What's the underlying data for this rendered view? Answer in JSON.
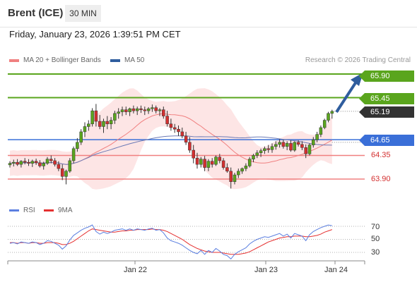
{
  "header": {
    "title": "Brent (ICE)",
    "timeframe": "30 MIN"
  },
  "datetime": "Friday, January 23, 2026 1:39:51 PM CET",
  "legend": {
    "ma20": "MA 20 + Bollinger Bands",
    "ma50": "MA 50",
    "rsi": "RSI",
    "ma9": "9MA"
  },
  "credit": "Research © 2026 Trading Central",
  "colors": {
    "resistance": "#5aa51d",
    "support": "#f08080",
    "pivot": "#3a6fd8",
    "current": "#333333",
    "arrow": "#2f5d9e",
    "candle_up": "#5aa51d",
    "candle_down": "#d32f2f",
    "bb_fill": "#fcdcdc",
    "ma20": "#f08080",
    "ma50": "#6b7ab6",
    "rsi": "#5b7fe0",
    "ma9": "#e53030"
  },
  "chart_data": [
    {
      "type": "candlestick",
      "ylim": [
        63.68,
        66.06
      ],
      "x_ticks": [
        "Jan 22",
        "Jan 23",
        "Jan 24"
      ],
      "levels": {
        "resistance": [
          "65.90",
          "65.45"
        ],
        "current": "65.19",
        "pivot": "64.65",
        "support": [
          "64.35",
          "63.90"
        ]
      },
      "ohlc": [
        [
          64.17,
          64.24,
          64.12,
          64.2
        ],
        [
          64.2,
          64.27,
          64.14,
          64.22
        ],
        [
          64.22,
          64.28,
          64.15,
          64.18
        ],
        [
          64.18,
          64.26,
          64.12,
          64.24
        ],
        [
          64.24,
          64.3,
          64.18,
          64.22
        ],
        [
          64.22,
          64.28,
          64.15,
          64.2
        ],
        [
          64.2,
          64.27,
          64.13,
          64.24
        ],
        [
          64.24,
          64.29,
          64.17,
          64.21
        ],
        [
          64.21,
          64.26,
          64.12,
          64.15
        ],
        [
          64.15,
          64.23,
          64.08,
          64.2
        ],
        [
          64.2,
          64.32,
          64.17,
          64.28
        ],
        [
          64.28,
          64.35,
          64.2,
          64.25
        ],
        [
          64.25,
          64.3,
          64.14,
          64.18
        ],
        [
          64.18,
          64.24,
          64.05,
          64.1
        ],
        [
          64.1,
          64.18,
          63.88,
          63.95
        ],
        [
          63.95,
          64.08,
          63.8,
          64.05
        ],
        [
          64.05,
          64.3,
          64.02,
          64.25
        ],
        [
          64.25,
          64.52,
          64.2,
          64.48
        ],
        [
          64.48,
          64.68,
          64.42,
          64.6
        ],
        [
          64.6,
          64.85,
          64.55,
          64.8
        ],
        [
          64.8,
          64.98,
          64.7,
          64.9
        ],
        [
          64.9,
          65.02,
          64.82,
          64.95
        ],
        [
          64.95,
          65.25,
          64.9,
          65.2
        ],
        [
          65.2,
          65.33,
          64.9,
          65.0
        ],
        [
          65.0,
          65.12,
          64.85,
          64.9
        ],
        [
          64.9,
          65.05,
          64.78,
          65.0
        ],
        [
          65.0,
          65.1,
          64.85,
          64.95
        ],
        [
          64.95,
          65.08,
          64.85,
          65.02
        ],
        [
          65.02,
          65.2,
          64.95,
          65.15
        ],
        [
          65.15,
          65.25,
          65.05,
          65.18
        ],
        [
          65.18,
          65.28,
          65.1,
          65.22
        ],
        [
          65.22,
          65.28,
          65.12,
          65.18
        ],
        [
          65.18,
          65.26,
          65.1,
          65.24
        ],
        [
          65.24,
          65.3,
          65.15,
          65.2
        ],
        [
          65.2,
          65.28,
          65.12,
          65.24
        ],
        [
          65.24,
          65.3,
          65.16,
          65.22
        ],
        [
          65.22,
          65.28,
          65.12,
          65.2
        ],
        [
          65.2,
          65.27,
          65.14,
          65.24
        ],
        [
          65.24,
          65.32,
          65.18,
          65.26
        ],
        [
          65.26,
          65.3,
          65.15,
          65.2
        ],
        [
          65.2,
          65.25,
          65.1,
          65.22
        ],
        [
          65.22,
          65.28,
          65.05,
          65.1
        ],
        [
          65.1,
          65.2,
          64.9,
          64.95
        ],
        [
          64.95,
          65.05,
          64.82,
          64.88
        ],
        [
          64.88,
          64.95,
          64.78,
          64.85
        ],
        [
          64.85,
          64.92,
          64.72,
          64.8
        ],
        [
          64.8,
          64.88,
          64.68,
          64.72
        ],
        [
          64.72,
          64.8,
          64.55,
          64.6
        ],
        [
          64.6,
          64.7,
          64.4,
          64.45
        ],
        [
          64.45,
          64.55,
          64.2,
          64.3
        ],
        [
          64.3,
          64.4,
          64.1,
          64.18
        ],
        [
          64.18,
          64.32,
          64.12,
          64.28
        ],
        [
          64.28,
          64.34,
          64.05,
          64.12
        ],
        [
          64.12,
          64.28,
          64.05,
          64.24
        ],
        [
          64.24,
          64.3,
          64.12,
          64.18
        ],
        [
          64.18,
          64.35,
          64.15,
          64.32
        ],
        [
          64.32,
          64.38,
          64.2,
          64.25
        ],
        [
          64.25,
          64.3,
          64.08,
          64.12
        ],
        [
          64.12,
          64.2,
          64.02,
          64.05
        ],
        [
          64.05,
          64.12,
          63.72,
          63.85
        ],
        [
          63.85,
          64.02,
          63.8,
          63.98
        ],
        [
          63.98,
          64.1,
          63.92,
          64.05
        ],
        [
          64.05,
          64.12,
          64.0,
          64.1
        ],
        [
          64.1,
          64.2,
          64.05,
          64.15
        ],
        [
          64.15,
          64.32,
          64.12,
          64.28
        ],
        [
          64.28,
          64.38,
          64.22,
          64.35
        ],
        [
          64.35,
          64.45,
          64.3,
          64.4
        ],
        [
          64.4,
          64.48,
          64.32,
          64.44
        ],
        [
          64.44,
          64.52,
          64.38,
          64.48
        ],
        [
          64.48,
          64.55,
          64.4,
          64.46
        ],
        [
          64.46,
          64.58,
          64.4,
          64.52
        ],
        [
          64.52,
          64.62,
          64.46,
          64.56
        ],
        [
          64.56,
          64.66,
          64.5,
          64.6
        ],
        [
          64.6,
          64.65,
          64.48,
          64.52
        ],
        [
          64.52,
          64.62,
          64.45,
          64.58
        ],
        [
          64.58,
          64.64,
          64.42,
          64.45
        ],
        [
          64.45,
          64.62,
          64.42,
          64.6
        ],
        [
          64.6,
          64.64,
          64.52,
          64.56
        ],
        [
          64.56,
          64.62,
          64.45,
          64.5
        ],
        [
          64.5,
          64.56,
          64.3,
          64.38
        ],
        [
          64.38,
          64.58,
          64.35,
          64.55
        ],
        [
          64.55,
          64.7,
          64.5,
          64.65
        ],
        [
          64.65,
          64.8,
          64.6,
          64.75
        ],
        [
          64.75,
          64.92,
          64.7,
          64.88
        ],
        [
          64.88,
          65.05,
          64.85,
          65.02
        ],
        [
          65.02,
          65.18,
          64.98,
          65.15
        ],
        [
          65.15,
          65.22,
          65.05,
          65.19
        ]
      ]
    },
    {
      "type": "line",
      "title": "RSI",
      "ylim": [
        15,
        85
      ],
      "y_ticks": [
        30,
        50,
        70
      ],
      "rsi": [
        44,
        45,
        43,
        46,
        45,
        44,
        46,
        45,
        42,
        44,
        48,
        47,
        44,
        41,
        35,
        40,
        49,
        56,
        60,
        64,
        67,
        69,
        72,
        62,
        58,
        61,
        59,
        61,
        64,
        65,
        66,
        64,
        66,
        64,
        66,
        65,
        64,
        66,
        67,
        64,
        65,
        60,
        52,
        48,
        46,
        44,
        41,
        37,
        33,
        30,
        28,
        33,
        27,
        33,
        30,
        36,
        32,
        27,
        25,
        20,
        27,
        31,
        34,
        37,
        43,
        47,
        50,
        52,
        54,
        53,
        55,
        57,
        59,
        55,
        58,
        52,
        59,
        57,
        55,
        48,
        57,
        62,
        65,
        68,
        70,
        72,
        71
      ],
      "ma9": [
        45,
        45,
        44,
        45,
        45,
        44,
        45,
        45,
        44,
        44,
        45,
        45,
        45,
        44,
        42,
        42,
        44,
        47,
        51,
        55,
        59,
        63,
        66,
        65,
        64,
        63,
        62,
        61,
        61,
        62,
        63,
        63,
        64,
        64,
        65,
        65,
        65,
        65,
        66,
        65,
        65,
        64,
        62,
        59,
        56,
        53,
        50,
        46,
        42,
        39,
        36,
        34,
        32,
        31,
        30,
        30,
        30,
        29,
        28,
        27,
        27,
        27,
        28,
        29,
        31,
        34,
        37,
        40,
        43,
        46,
        48,
        50,
        52,
        53,
        54,
        54,
        55,
        55,
        55,
        54,
        54,
        55,
        56,
        58,
        61,
        63,
        65
      ]
    }
  ]
}
